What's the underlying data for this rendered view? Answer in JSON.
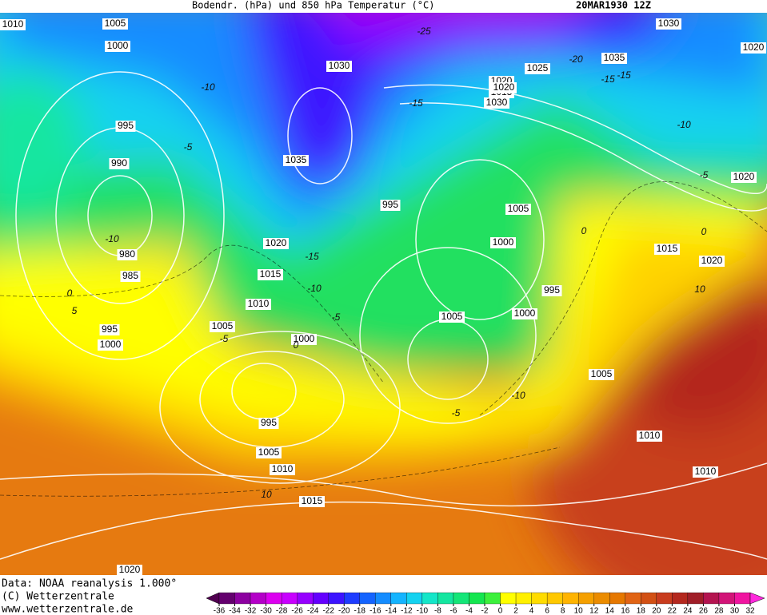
{
  "header": {
    "title": "Bodendr. (hPa) und 850 hPa Temperatur (°C)",
    "date": "20MAR1930 12Z"
  },
  "isobar_labels": [
    "1010",
    "1005",
    "1000",
    "995",
    "990",
    "980",
    "985",
    "995",
    "1000",
    "1030",
    "1035",
    "1020",
    "1030",
    "1025",
    "1020",
    "1015",
    "1030",
    "1035",
    "1020",
    "995",
    "1020",
    "1015",
    "1010",
    "1005",
    "1000",
    "1005",
    "1000",
    "1005",
    "1000",
    "995",
    "1020",
    "1015",
    "1005",
    "1010",
    "1010",
    "995",
    "1005",
    "1010",
    "1015",
    "1020",
    "1020"
  ],
  "isotherm_labels": [
    "-25",
    "-20",
    "-15",
    "-15",
    "-10",
    "-5",
    "-15",
    "-10",
    "-5",
    "0",
    "5",
    "0",
    "-5",
    "-10",
    "-15",
    "0",
    "-5",
    "-10",
    "0",
    "-5",
    "10",
    "-10",
    "10"
  ],
  "legend": {
    "ticks": [
      -36,
      -34,
      -32,
      -30,
      -28,
      -26,
      -24,
      -22,
      -20,
      -18,
      -16,
      -14,
      -12,
      -10,
      -8,
      -6,
      -4,
      -2,
      0,
      2,
      4,
      6,
      8,
      10,
      12,
      14,
      16,
      18,
      20,
      22,
      24,
      26,
      28,
      30,
      32
    ],
    "colors": [
      "#500050",
      "#64006e",
      "#8c00a0",
      "#b400c8",
      "#dc00f0",
      "#c800ff",
      "#9600ff",
      "#6400ff",
      "#3c14ff",
      "#1e3cff",
      "#1464ff",
      "#148cff",
      "#14b4ff",
      "#14d2f0",
      "#14e6c8",
      "#14e6a0",
      "#14e678",
      "#14e650",
      "#3cf03c",
      "#ffff00",
      "#fff000",
      "#ffdc00",
      "#ffc800",
      "#ffb400",
      "#f5a000",
      "#eb8c00",
      "#e67800",
      "#e16414",
      "#d25014",
      "#c83c1e",
      "#b4281e",
      "#a01e28",
      "#b41450",
      "#d21478",
      "#f014a0",
      "#ff28dc"
    ]
  },
  "credits": [
    "Data: NOAA reanalysis 1.000°",
    "(C) Wetterzentrale",
    "www.wetterzentrale.de"
  ]
}
